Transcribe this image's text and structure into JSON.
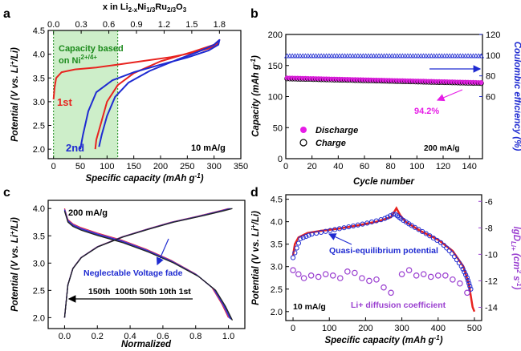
{
  "colors": {
    "red": "#e8231f",
    "blue": "#1f2bd1",
    "magenta": "#e61ce6",
    "purple": "#9a3fd0",
    "green_fill": "#cdeec9",
    "green_text": "#1b8a1b"
  },
  "chart_data": [
    {
      "panel": "a",
      "type": "line",
      "top_axis_label": "x in Li2-xNi1/3Ru2/3O3",
      "top_ticks": [
        "0.0",
        "0.3",
        "0.6",
        "0.9",
        "1.2",
        "1.5",
        "1.8"
      ],
      "xlabel": "Specific capacity (mAh g-1)",
      "ylabel": "Potential (V vs. Li+/Li)",
      "xlim": [
        -10,
        350
      ],
      "ylim": [
        1.8,
        4.5
      ],
      "xticks": [
        "0",
        "50",
        "100",
        "150",
        "200",
        "250",
        "300",
        "350"
      ],
      "yticks": [
        "2.0",
        "2.5",
        "3.0",
        "3.5",
        "4.0",
        "4.5"
      ],
      "shaded_region": [
        0,
        120
      ],
      "annotations": {
        "shade": "Capacity based",
        "shade2": "on Ni",
        "shade2_sup": "2+/4+",
        "first": "1st",
        "second": "2nd",
        "rate": "10 mA/g"
      },
      "series": [
        {
          "name": "1st",
          "color": "red",
          "x": [
            0,
            2,
            5,
            15,
            40,
            80,
            120,
            170,
            220,
            260,
            290,
            305,
            310,
            300,
            260,
            200,
            150,
            120,
            100,
            90,
            80,
            78
          ],
          "y": [
            3.05,
            3.3,
            3.5,
            3.62,
            3.68,
            3.72,
            3.78,
            3.86,
            3.94,
            4.03,
            4.12,
            4.2,
            4.3,
            4.2,
            4.05,
            3.85,
            3.6,
            3.35,
            3.0,
            2.6,
            2.2,
            2.0
          ]
        },
        {
          "name": "2nd",
          "color": "blue",
          "x": [
            50,
            55,
            65,
            80,
            110,
            150,
            200,
            250,
            290,
            308,
            310,
            300,
            270,
            230,
            180,
            140,
            115,
            100,
            90,
            85
          ],
          "y": [
            2.0,
            2.3,
            2.8,
            3.2,
            3.45,
            3.62,
            3.78,
            3.93,
            4.08,
            4.2,
            4.3,
            4.2,
            4.05,
            3.88,
            3.65,
            3.4,
            3.1,
            2.7,
            2.3,
            2.05
          ]
        }
      ]
    },
    {
      "panel": "b",
      "type": "scatter",
      "xlabel": "Cycle number",
      "ylabel": "Capacity (mAh g-1)",
      "y2label": "Coulombic efficiency (%)",
      "xlim": [
        0,
        150
      ],
      "ylim": [
        0,
        200
      ],
      "y2lim": [
        0,
        120
      ],
      "xticks": [
        "0",
        "20",
        "40",
        "60",
        "80",
        "100",
        "120",
        "140"
      ],
      "yticks": [
        "0",
        "50",
        "100",
        "150",
        "200"
      ],
      "y2ticks": [
        "60",
        "80",
        "100",
        "120"
      ],
      "annotations": {
        "retention": "94.2%",
        "rate": "200 mA/g"
      },
      "legend": [
        "Discharge",
        "Charge"
      ],
      "series": [
        {
          "name": "Discharge",
          "color": "magenta",
          "x_start": 1,
          "x_end": 150,
          "y_start": 130,
          "y_end": 122.5
        },
        {
          "name": "Charge",
          "color": "black",
          "x_start": 1,
          "x_end": 150,
          "y_start": 129,
          "y_end": 121.5
        },
        {
          "name": "Coulombic efficiency",
          "color": "blue",
          "x_start": 1,
          "x_end": 150,
          "y_value": 99
        }
      ]
    },
    {
      "panel": "c",
      "type": "line",
      "xlabel": "Normalized",
      "ylabel": "Potential (V vs. Li+/Li)",
      "xlim": [
        -0.1,
        1.1
      ],
      "ylim": [
        1.8,
        4.15
      ],
      "xticks": [
        "0.0",
        "0.2",
        "0.4",
        "0.6",
        "0.8",
        "1.0"
      ],
      "yticks": [
        "2.0",
        "2.5",
        "3.0",
        "3.5",
        "4.0"
      ],
      "annotations": {
        "rate": "200 mA/g",
        "fade": "Neglectable Voltage fade",
        "order": "150th  100th 50th 10th 1st"
      },
      "series": [
        {
          "name": "charge",
          "x": [
            0,
            0.02,
            0.05,
            0.1,
            0.2,
            0.35,
            0.5,
            0.65,
            0.8,
            0.95,
            1.0
          ],
          "y": [
            2.0,
            2.6,
            2.9,
            3.1,
            3.3,
            3.48,
            3.62,
            3.75,
            3.85,
            3.96,
            4.0
          ]
        },
        {
          "name": "discharge",
          "x": [
            0,
            0.02,
            0.05,
            0.1,
            0.2,
            0.35,
            0.5,
            0.65,
            0.8,
            0.9,
            0.96,
            1.0
          ],
          "y": [
            4.0,
            3.8,
            3.72,
            3.65,
            3.55,
            3.42,
            3.25,
            3.05,
            2.8,
            2.55,
            2.25,
            2.0
          ]
        }
      ]
    },
    {
      "panel": "d",
      "type": "scatter",
      "xlabel": "Specific capacity (mAh g-1)",
      "ylabel": "Potential (V vs. Li+/Li)",
      "y2label": "lgDLi+ (cm2 s-1)",
      "xlim": [
        -20,
        520
      ],
      "ylim": [
        1.8,
        4.6
      ],
      "y2lim": [
        -15,
        -5.5
      ],
      "xticks": [
        "0",
        "100",
        "200",
        "300",
        "400",
        "500"
      ],
      "yticks": [
        "2.0",
        "2.5",
        "3.0",
        "3.5",
        "4.0",
        "4.5"
      ],
      "y2ticks": [
        "-6",
        "-8",
        "-10",
        "-12",
        "-14"
      ],
      "annotations": {
        "qe": "Quasi-equilibrium potential",
        "diff": "Li+ diffusion coefficient",
        "rate": "10 mA/g"
      },
      "series": [
        {
          "name": "potential",
          "color": "red",
          "x": [
            0,
            5,
            15,
            40,
            80,
            130,
            180,
            230,
            270,
            285,
            295,
            310,
            350,
            400,
            440,
            470,
            485,
            495,
            500
          ],
          "y": [
            3.25,
            3.5,
            3.65,
            3.75,
            3.8,
            3.85,
            3.92,
            4.0,
            4.1,
            4.3,
            4.15,
            4.0,
            3.8,
            3.6,
            3.35,
            3.0,
            2.6,
            2.1,
            2.0
          ]
        },
        {
          "name": "quasi-equilibrium",
          "color": "blue",
          "x": [
            0,
            20,
            50,
            100,
            150,
            200,
            250,
            280,
            300,
            330,
            370,
            410,
            440,
            465,
            480,
            490
          ],
          "y": [
            3.2,
            3.62,
            3.72,
            3.8,
            3.88,
            3.96,
            4.06,
            4.18,
            4.05,
            3.9,
            3.72,
            3.52,
            3.28,
            3.0,
            2.75,
            2.5
          ]
        },
        {
          "name": "lgD",
          "color": "purple",
          "x": [
            0,
            15,
            30,
            50,
            70,
            90,
            110,
            130,
            150,
            170,
            190,
            210,
            230,
            250,
            270,
            300,
            320,
            340,
            360,
            380,
            400,
            420,
            440,
            460,
            480
          ],
          "y": [
            -11.2,
            -11.5,
            -11.8,
            -11.6,
            -11.7,
            -11.5,
            -11.6,
            -11.8,
            -11.3,
            -11.4,
            -11.8,
            -12.0,
            -11.9,
            -12.5,
            -12.9,
            -11.5,
            -11.2,
            -11.6,
            -11.5,
            -11.7,
            -11.6,
            -11.6,
            -11.9,
            -12.2,
            -12.9
          ]
        }
      ]
    }
  ]
}
